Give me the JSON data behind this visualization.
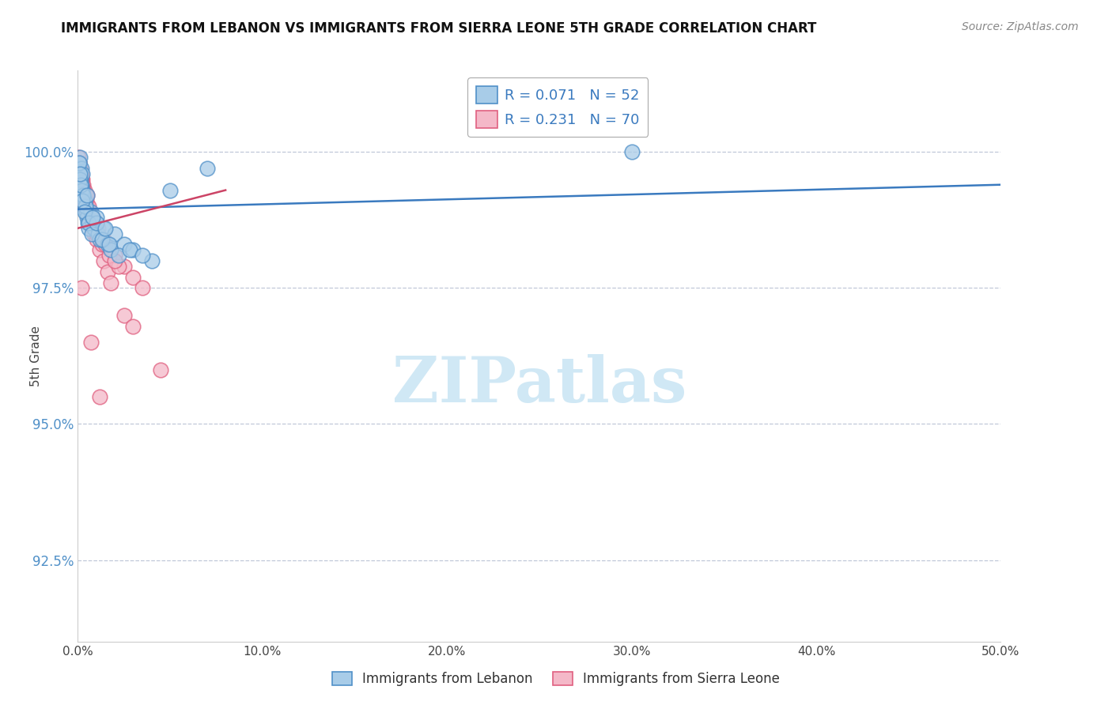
{
  "title": "IMMIGRANTS FROM LEBANON VS IMMIGRANTS FROM SIERRA LEONE 5TH GRADE CORRELATION CHART",
  "source": "Source: ZipAtlas.com",
  "ylabel": "5th Grade",
  "legend_label1": "Immigrants from Lebanon",
  "legend_label2": "Immigrants from Sierra Leone",
  "R1": 0.071,
  "N1": 52,
  "R2": 0.231,
  "N2": 70,
  "color_blue_fill": "#a8cce8",
  "color_pink_fill": "#f4b8c8",
  "color_blue_edge": "#5090c8",
  "color_pink_edge": "#e06080",
  "color_blue_line": "#3a7abf",
  "color_pink_line": "#cc4466",
  "color_grid": "#c0c8d8",
  "color_ytick": "#5090c8",
  "color_xtick": "#444444",
  "watermark_color": "#d0e8f5",
  "xlim": [
    0,
    50
  ],
  "ylim": [
    91.0,
    101.5
  ],
  "yticks": [
    92.5,
    95.0,
    97.5,
    100.0
  ],
  "xticks": [
    0,
    10,
    20,
    30,
    40,
    50
  ],
  "lebanon_x": [
    0.05,
    0.08,
    0.1,
    0.12,
    0.15,
    0.18,
    0.2,
    0.22,
    0.25,
    0.3,
    0.35,
    0.4,
    0.45,
    0.5,
    0.55,
    0.6,
    0.7,
    0.8,
    0.9,
    1.0,
    1.1,
    1.2,
    1.4,
    1.6,
    1.8,
    2.0,
    2.5,
    3.0,
    4.0,
    5.0,
    0.1,
    0.2,
    0.3,
    0.4,
    0.15,
    0.25,
    0.35,
    0.6,
    0.75,
    1.0,
    1.3,
    1.7,
    2.2,
    0.5,
    0.8,
    1.5,
    2.8,
    3.5,
    7.0,
    30.0,
    0.08,
    0.12
  ],
  "lebanon_y": [
    99.8,
    99.7,
    99.9,
    99.6,
    99.5,
    99.4,
    99.7,
    99.3,
    99.6,
    99.2,
    99.1,
    99.0,
    98.9,
    98.8,
    98.7,
    98.6,
    98.9,
    98.7,
    98.6,
    98.8,
    98.5,
    98.4,
    98.6,
    98.3,
    98.2,
    98.5,
    98.3,
    98.2,
    98.0,
    99.3,
    99.5,
    99.3,
    99.2,
    99.0,
    99.4,
    99.1,
    98.9,
    98.7,
    98.5,
    98.7,
    98.4,
    98.3,
    98.1,
    99.2,
    98.8,
    98.6,
    98.2,
    98.1,
    99.7,
    100.0,
    99.8,
    99.6
  ],
  "sierraleone_x": [
    0.03,
    0.05,
    0.08,
    0.1,
    0.12,
    0.15,
    0.18,
    0.2,
    0.22,
    0.25,
    0.28,
    0.3,
    0.35,
    0.4,
    0.45,
    0.5,
    0.55,
    0.6,
    0.7,
    0.8,
    0.9,
    1.0,
    1.2,
    1.4,
    1.6,
    1.8,
    2.0,
    2.5,
    3.0,
    3.5,
    0.08,
    0.12,
    0.18,
    0.25,
    0.35,
    0.5,
    0.7,
    1.0,
    1.3,
    1.7,
    2.2,
    0.1,
    0.2,
    0.3,
    0.4,
    0.6,
    0.8,
    1.1,
    1.5,
    2.0,
    0.05,
    0.1,
    0.15,
    0.2,
    0.3,
    0.4,
    0.6,
    0.5,
    1.0,
    1.4,
    0.08,
    0.15,
    0.25,
    0.35,
    2.5,
    3.0,
    0.2,
    4.5,
    0.7,
    1.2
  ],
  "sierraleone_y": [
    99.9,
    99.8,
    99.8,
    99.7,
    99.7,
    99.6,
    99.6,
    99.5,
    99.4,
    99.5,
    99.4,
    99.3,
    99.3,
    99.2,
    99.1,
    99.0,
    98.9,
    98.8,
    98.7,
    98.6,
    98.5,
    98.4,
    98.2,
    98.0,
    97.8,
    97.6,
    98.1,
    97.9,
    97.7,
    97.5,
    99.6,
    99.5,
    99.4,
    99.2,
    99.1,
    98.9,
    98.7,
    98.5,
    98.3,
    98.1,
    97.9,
    99.7,
    99.5,
    99.3,
    99.2,
    99.0,
    98.8,
    98.6,
    98.3,
    98.0,
    99.8,
    99.7,
    99.6,
    99.5,
    99.3,
    99.1,
    98.9,
    99.2,
    98.7,
    98.4,
    99.7,
    99.5,
    99.3,
    99.0,
    97.0,
    96.8,
    97.5,
    96.0,
    96.5,
    95.5
  ],
  "lb_line_x0": 0,
  "lb_line_y0": 98.95,
  "lb_line_x1": 50,
  "lb_line_y1": 99.4,
  "sl_line_x0": 0,
  "sl_line_y0": 98.6,
  "sl_line_x1": 8,
  "sl_line_y1": 99.3
}
